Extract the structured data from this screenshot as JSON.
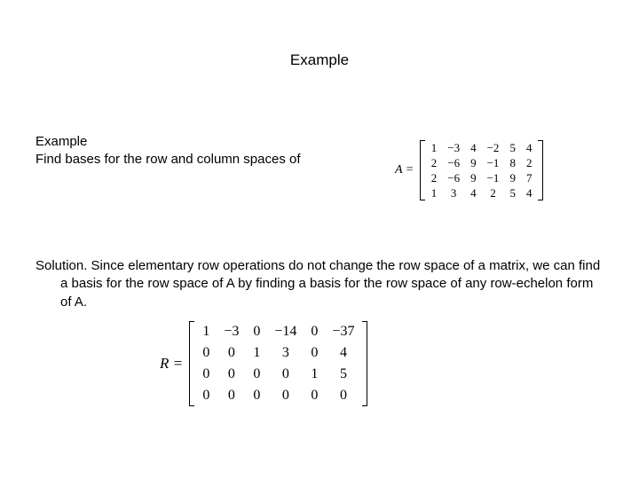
{
  "typography": {
    "body_font": "Arial, Helvetica, sans-serif",
    "math_font": "Times New Roman, Times, serif",
    "text_color": "#000000",
    "background_color": "#ffffff",
    "title_fontsize_pt": 13,
    "body_fontsize_pt": 11,
    "matrixA_fontsize_pt": 10,
    "matrixR_fontsize_pt": 12
  },
  "title": "Example",
  "problem": {
    "label": "Example",
    "text": "Find bases for the row and column spaces of"
  },
  "matrixA": {
    "label": "A =",
    "type": "matrix",
    "rows": [
      [
        "1",
        "−3",
        "4",
        "−2",
        "5",
        "4"
      ],
      [
        "2",
        "−6",
        "9",
        "−1",
        "8",
        "2"
      ],
      [
        "2",
        "−6",
        "9",
        "−1",
        "9",
        "7"
      ],
      [
        "1",
        "3",
        "4",
        "2",
        "5",
        "4"
      ]
    ],
    "bracket_color": "#000000"
  },
  "solution": {
    "text": "Solution. Since elementary row operations do not change the row space of a matrix, we can find a basis for the row space of A by finding a basis for the row space of any row-echelon form of A."
  },
  "matrixR": {
    "label": "R =",
    "type": "matrix",
    "rows": [
      [
        "1",
        "−3",
        "0",
        "−14",
        "0",
        "−37"
      ],
      [
        "0",
        "0",
        "1",
        "3",
        "0",
        "4"
      ],
      [
        "0",
        "0",
        "0",
        "0",
        "1",
        "5"
      ],
      [
        "0",
        "0",
        "0",
        "0",
        "0",
        "0"
      ]
    ],
    "bracket_color": "#000000"
  }
}
